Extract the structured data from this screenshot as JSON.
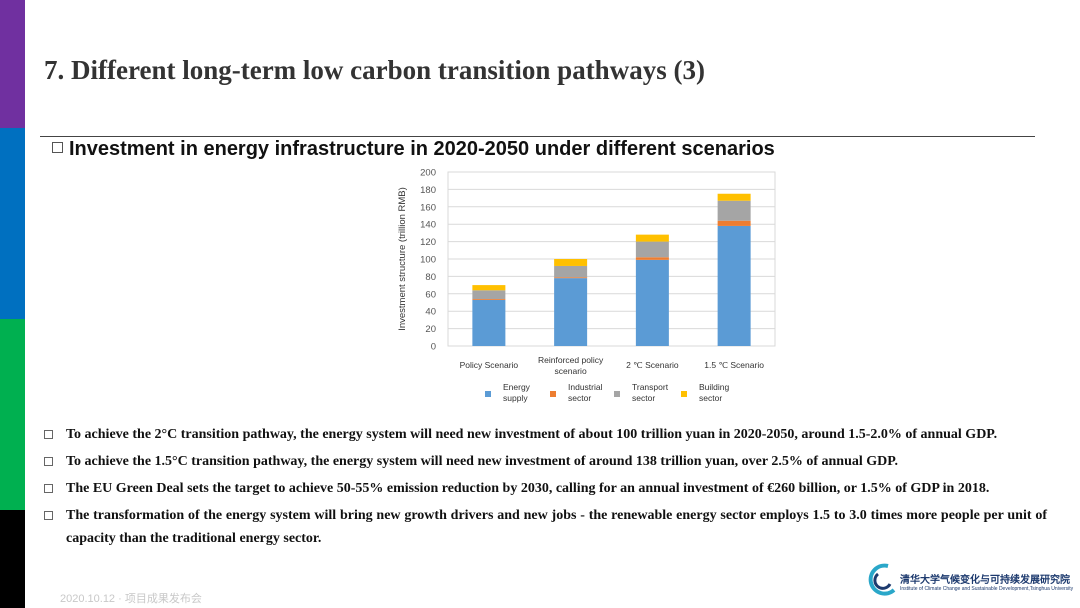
{
  "slide": {
    "title": "7. Different long-term low carbon transition pathways (3)",
    "subtitle": "Investment in energy infrastructure in 2020-2050 under different scenarios",
    "sidebar_colors": [
      "#7030a0",
      "#0070c0",
      "#00b050",
      "#000000"
    ],
    "bullets": [
      "To achieve the 2°C transition pathway, the energy system will need new investment of about 100 trillion yuan in 2020-2050, around 1.5-2.0% of annual GDP.",
      "To achieve the 1.5°C transition pathway, the energy system will need new investment of around 138 trillion yuan, over 2.5% of annual GDP.",
      "The EU Green Deal sets the target to achieve 50-55% emission reduction by 2030, calling for an annual investment of €260 billion, or 1.5% of GDP in 2018.",
      "The transformation of the energy system will bring new growth drivers and new jobs - the renewable energy sector employs 1.5 to 3.0 times more people per unit of capacity than the traditional energy sector."
    ],
    "footer_date": "2020.10.12 · 项目成果发布会",
    "logo": {
      "cn": "清华大学气候变化与可持续发展研究院",
      "en": "Institute of Climate Change and Sustainable Development,Tsinghua University"
    }
  },
  "chart_data": {
    "type": "bar",
    "stacked": true,
    "categories": [
      "Policy Scenario",
      "Reinforced policy scenario",
      "2 ℃ Scenario",
      "1.5 ℃ Scenario"
    ],
    "series": [
      {
        "name": "Energy supply",
        "color": "#5b9bd5",
        "values": [
          53,
          78,
          99,
          138
        ]
      },
      {
        "name": "Industrial sector",
        "color": "#ed7d31",
        "values": [
          1,
          1,
          3,
          6
        ]
      },
      {
        "name": "Transport sector",
        "color": "#a5a5a5",
        "values": [
          10,
          13,
          18,
          23
        ]
      },
      {
        "name": "Building sector",
        "color": "#ffc000",
        "values": [
          6,
          8,
          8,
          8
        ]
      }
    ],
    "ylabel": "Investment structure (trillion RMB)",
    "xlabel": "",
    "ylim": [
      0,
      200
    ],
    "yticks": [
      0,
      20,
      40,
      60,
      80,
      100,
      120,
      140,
      160,
      180,
      200
    ],
    "grid": true,
    "legend_position": "bottom"
  }
}
